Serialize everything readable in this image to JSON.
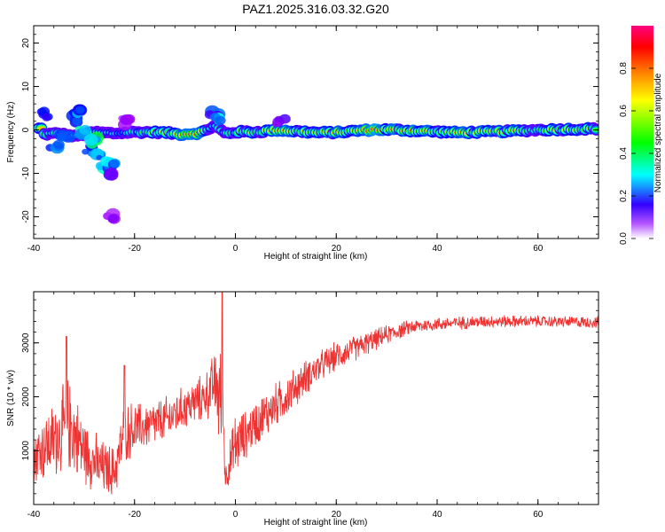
{
  "figure": {
    "title": "PAZ1.2025.316.03.32.G20"
  },
  "chart_data": [
    {
      "type": "heatmap",
      "xlabel": "Height of straight line (km)",
      "ylabel": "Frequency (Hz)",
      "xlim": [
        -40,
        72
      ],
      "ylim": [
        -25,
        24
      ],
      "xticks": [
        -40,
        -20,
        0,
        20,
        40,
        60
      ],
      "yticks": [
        -20,
        -10,
        0,
        10,
        20
      ],
      "grid": false,
      "colorbar": {
        "label": "Normalized spectral amplitude",
        "range": [
          0,
          1
        ],
        "ticks": [
          "0.0",
          "0.2",
          "0.4",
          "0.6",
          "0.8"
        ],
        "tick_values": [
          0,
          0.2,
          0.4,
          0.6,
          0.8
        ],
        "colormap": [
          "#ffffff",
          "#a000ff",
          "#0000ff",
          "#00ffff",
          "#00ff00",
          "#ffff00",
          "#ff8000",
          "#ff0000",
          "#ff0080"
        ]
      },
      "ridge": {
        "description_values": "main spectral line near 0 Hz",
        "points": [
          {
            "x": -38,
            "f": -1.0,
            "a": 0.45
          },
          {
            "x": -35,
            "f": -0.8,
            "a": 0.5
          },
          {
            "x": -32,
            "f": -1.5,
            "a": 0.35
          },
          {
            "x": -28,
            "f": -0.5,
            "a": 0.35
          },
          {
            "x": -24,
            "f": -0.8,
            "a": 0.4
          },
          {
            "x": -20,
            "f": -0.5,
            "a": 0.45
          },
          {
            "x": -17,
            "f": -0.5,
            "a": 0.6
          },
          {
            "x": -14,
            "f": -0.6,
            "a": 0.7
          },
          {
            "x": -11,
            "f": -1.0,
            "a": 0.85
          },
          {
            "x": -7,
            "f": -0.7,
            "a": 0.9
          },
          {
            "x": -4,
            "f": 1.0,
            "a": 0.35
          },
          {
            "x": -2,
            "f": -0.8,
            "a": 0.5
          },
          {
            "x": 1,
            "f": -0.4,
            "a": 0.6
          },
          {
            "x": 4,
            "f": -0.5,
            "a": 0.7
          },
          {
            "x": 8,
            "f": 0.0,
            "a": 0.8
          },
          {
            "x": 12,
            "f": -0.3,
            "a": 0.8
          },
          {
            "x": 16,
            "f": -0.6,
            "a": 0.75
          },
          {
            "x": 20,
            "f": -0.6,
            "a": 0.85
          },
          {
            "x": 24,
            "f": -0.2,
            "a": 0.85
          },
          {
            "x": 28,
            "f": 0.1,
            "a": 0.95
          },
          {
            "x": 32,
            "f": 0.0,
            "a": 0.9
          },
          {
            "x": 36,
            "f": -0.2,
            "a": 0.85
          },
          {
            "x": 40,
            "f": -0.4,
            "a": 0.85
          },
          {
            "x": 44,
            "f": -0.6,
            "a": 0.85
          },
          {
            "x": 48,
            "f": -0.5,
            "a": 0.8
          },
          {
            "x": 52,
            "f": -0.4,
            "a": 0.85
          },
          {
            "x": 56,
            "f": -0.2,
            "a": 0.75
          },
          {
            "x": 60,
            "f": 0.0,
            "a": 0.75
          },
          {
            "x": 64,
            "f": 0.1,
            "a": 0.7
          },
          {
            "x": 68,
            "f": 0.2,
            "a": 0.75
          },
          {
            "x": 71,
            "f": 0.3,
            "a": 0.7
          }
        ]
      },
      "scatter_blobs": [
        {
          "x": -38,
          "f": 3.5,
          "a": 0.15
        },
        {
          "x": -36,
          "f": -4.0,
          "a": 0.2
        },
        {
          "x": -34,
          "f": -2.0,
          "a": 0.25
        },
        {
          "x": -32,
          "f": 2.5,
          "a": 0.2
        },
        {
          "x": -31,
          "f": 3.8,
          "a": 0.25
        },
        {
          "x": -30,
          "f": -0.5,
          "a": 0.3
        },
        {
          "x": -29,
          "f": -4.5,
          "a": 0.2
        },
        {
          "x": -28,
          "f": -2.5,
          "a": 0.35
        },
        {
          "x": -27,
          "f": -6.0,
          "a": 0.25
        },
        {
          "x": -26,
          "f": -8.0,
          "a": 0.3
        },
        {
          "x": -25,
          "f": -7.5,
          "a": 0.25
        },
        {
          "x": -24,
          "f": -10.0,
          "a": 0.15
        },
        {
          "x": -25,
          "f": -20.0,
          "a": 0.08
        },
        {
          "x": -22,
          "f": 2.0,
          "a": 0.08
        },
        {
          "x": -4,
          "f": 3.5,
          "a": 0.2
        },
        {
          "x": -3,
          "f": 2.5,
          "a": 0.3
        },
        {
          "x": 9,
          "f": 2.0,
          "a": 0.1
        }
      ]
    },
    {
      "type": "line",
      "xlabel": "Height of straight line (km)",
      "ylabel": "SNR (10 * v/v)",
      "xlim": [
        -40,
        72
      ],
      "ylim": [
        0,
        3950
      ],
      "xticks": [
        -40,
        -20,
        0,
        20,
        40,
        60
      ],
      "yticks": [
        1000,
        2000,
        3000
      ],
      "grid": false,
      "line_color": "#ee3333",
      "envelope": {
        "x": [
          -40,
          -36,
          -33,
          -30,
          -27,
          -24,
          -22,
          -18,
          -14,
          -10,
          -6,
          -4,
          -2.5,
          -2,
          0,
          2,
          5,
          10,
          15,
          20,
          25,
          30,
          35,
          40,
          50,
          60,
          72
        ],
        "mean": [
          900,
          1200,
          1500,
          1000,
          700,
          600,
          1350,
          1450,
          1550,
          1800,
          2000,
          2250,
          1800,
          500,
          1100,
          1300,
          1600,
          2000,
          2450,
          2750,
          2950,
          3150,
          3300,
          3350,
          3400,
          3400,
          3380
        ],
        "amplitude": [
          650,
          800,
          1000,
          700,
          600,
          550,
          650,
          500,
          500,
          450,
          500,
          700,
          1600,
          300,
          700,
          500,
          500,
          450,
          350,
          300,
          250,
          200,
          150,
          140,
          130,
          120,
          120
        ]
      },
      "peaks": [
        {
          "x": -33.5,
          "y": 3120
        },
        {
          "x": -2.6,
          "y": 3950
        },
        {
          "x": -22,
          "y": 2580
        }
      ]
    }
  ]
}
